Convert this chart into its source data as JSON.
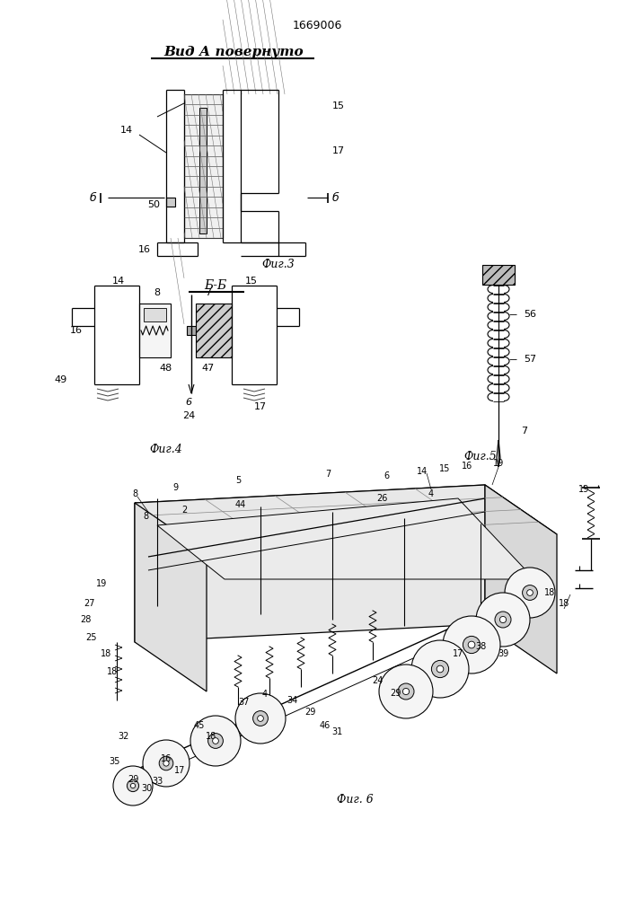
{
  "patent_number": "1669006",
  "title_text": "Вид А повернуто",
  "fig3_label": "Фиг.3",
  "fig4_label": "Фиг.4",
  "fig5_label": "Фиг.5",
  "fig6_label": "Фиг. 6",
  "bg_color": "#ffffff",
  "line_color": "#000000",
  "fig_width": 7.07,
  "fig_height": 10.0,
  "dpi": 100
}
